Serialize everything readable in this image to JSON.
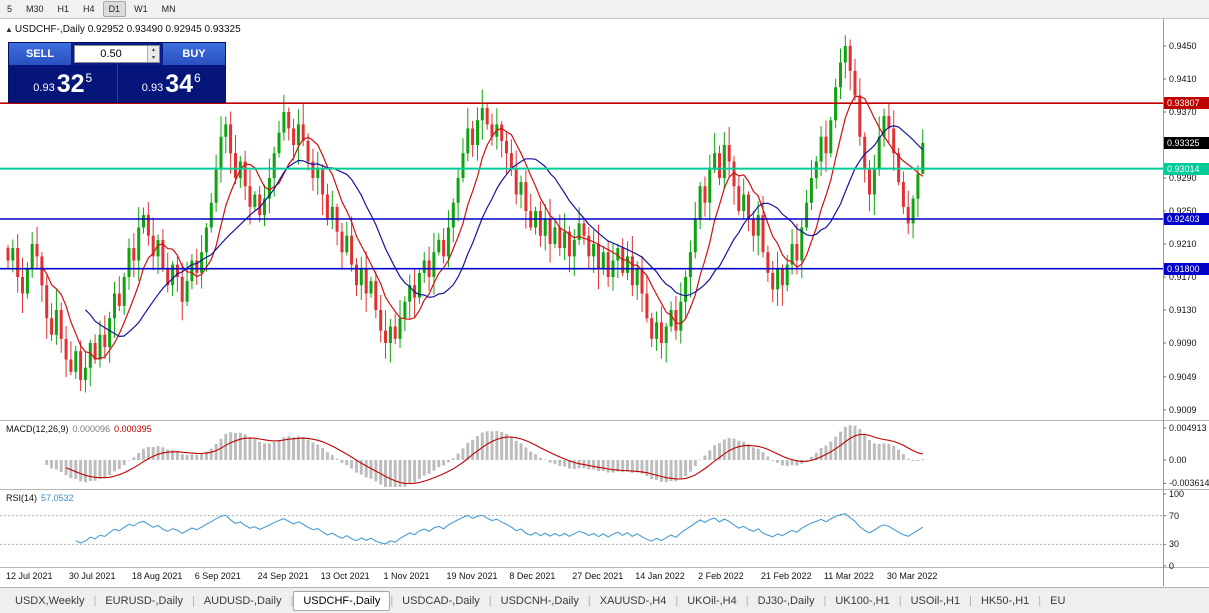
{
  "toolbar": {
    "timeframes": [
      {
        "label": "5",
        "active": false
      },
      {
        "label": "M30",
        "active": false
      },
      {
        "label": "H1",
        "active": false
      },
      {
        "label": "H4",
        "active": false
      },
      {
        "label": "D1",
        "active": true
      },
      {
        "label": "W1",
        "active": false
      },
      {
        "label": "MN",
        "active": false
      }
    ]
  },
  "icons": {
    "panel_toggle": "▲",
    "volume_up": "▴",
    "volume_down": "▾",
    "tab_separator": "|"
  },
  "chart_data": {
    "type": "candlestick",
    "title_symbol": "USDCHF-,Daily",
    "title_ohlc": "0.92952 0.93490 0.92945 0.93325",
    "last_candle": {
      "open": 0.92952,
      "high": 0.9349,
      "low": 0.92945,
      "close": 0.93325
    },
    "y_axis_labels": [
      "0.9450",
      "0.9410",
      "0.9370",
      "0.9330",
      "0.9290",
      "0.9250",
      "0.9210",
      "0.9170",
      "0.9130",
      "0.9090",
      "0.9049",
      "0.9009"
    ],
    "x_labels": [
      "12 Jul 2021",
      "30 Jul 2021",
      "18 Aug 2021",
      "6 Sep 2021",
      "24 Sep 2021",
      "13 Oct 2021",
      "1 Nov 2021",
      "19 Nov 2021",
      "8 Dec 2021",
      "27 Dec 2021",
      "14 Jan 2022",
      "2 Feb 2022",
      "21 Feb 2022",
      "11 Mar 2022",
      "30 Mar 2022"
    ],
    "closes": [
      0.919,
      0.9205,
      0.917,
      0.915,
      0.918,
      0.921,
      0.9195,
      0.916,
      0.912,
      0.91,
      0.913,
      0.9095,
      0.907,
      0.9055,
      0.908,
      0.9045,
      0.906,
      0.909,
      0.907,
      0.91,
      0.9085,
      0.912,
      0.915,
      0.9135,
      0.917,
      0.9205,
      0.919,
      0.923,
      0.9245,
      0.922,
      0.9195,
      0.9215,
      0.918,
      0.916,
      0.9185,
      0.917,
      0.914,
      0.9165,
      0.919,
      0.9175,
      0.92,
      0.923,
      0.926,
      0.93,
      0.934,
      0.9355,
      0.932,
      0.929,
      0.931,
      0.928,
      0.9255,
      0.927,
      0.9245,
      0.9265,
      0.929,
      0.932,
      0.9345,
      0.937,
      0.935,
      0.933,
      0.9355,
      0.9335,
      0.931,
      0.929,
      0.93,
      0.927,
      0.924,
      0.9255,
      0.9225,
      0.92,
      0.922,
      0.9185,
      0.916,
      0.918,
      0.915,
      0.9165,
      0.913,
      0.9105,
      0.909,
      0.911,
      0.9095,
      0.912,
      0.914,
      0.916,
      0.9145,
      0.9175,
      0.919,
      0.917,
      0.92,
      0.9215,
      0.9195,
      0.923,
      0.926,
      0.929,
      0.932,
      0.935,
      0.933,
      0.936,
      0.9375,
      0.9355,
      0.934,
      0.9355,
      0.9335,
      0.932,
      0.93,
      0.927,
      0.9285,
      0.925,
      0.923,
      0.925,
      0.922,
      0.924,
      0.921,
      0.923,
      0.9205,
      0.9225,
      0.9195,
      0.9215,
      0.9235,
      0.922,
      0.9195,
      0.921,
      0.918,
      0.92,
      0.917,
      0.919,
      0.9205,
      0.9175,
      0.9195,
      0.916,
      0.918,
      0.915,
      0.912,
      0.9095,
      0.9115,
      0.909,
      0.911,
      0.913,
      0.9105,
      0.914,
      0.917,
      0.92,
      0.924,
      0.928,
      0.926,
      0.93,
      0.932,
      0.929,
      0.933,
      0.931,
      0.928,
      0.925,
      0.927,
      0.924,
      0.922,
      0.9245,
      0.92,
      0.9175,
      0.9155,
      0.918,
      0.916,
      0.9185,
      0.921,
      0.919,
      0.923,
      0.926,
      0.929,
      0.931,
      0.934,
      0.932,
      0.936,
      0.94,
      0.943,
      0.945,
      0.942,
      0.939,
      0.934,
      0.93,
      0.927,
      0.93,
      0.934,
      0.9365,
      0.935,
      0.932,
      0.9285,
      0.9255,
      0.9235,
      0.9265,
      0.9295,
      0.93325
    ],
    "horizontal_lines": [
      {
        "value": "0.93807",
        "color": "#C00000"
      },
      {
        "value": "0.93014",
        "color": "#00CC99"
      },
      {
        "value": "0.92403",
        "color": "#0000C8"
      },
      {
        "value": "0.91800",
        "color": "#0000C8"
      }
    ],
    "current_price": {
      "value": "0.93325",
      "badge": "#000000"
    },
    "colors": {
      "up": "#0FA30F",
      "down": "#E03232",
      "ma_fast": "#D01010",
      "ma_slow": "#14149B",
      "macd_hist": "#BDBDBD",
      "macd_signal": "#C00000",
      "rsi": "#4A9CD3"
    }
  },
  "macd": {
    "label": "MACD(12,26,9)",
    "value_main": "0.000096",
    "value_signal": "0.000395",
    "axis": [
      "0.004913",
      "0.00",
      "-0.003614"
    ]
  },
  "rsi": {
    "label": "RSI(14)",
    "value": "57.0532",
    "axis": [
      "100",
      "70",
      "30",
      "0"
    ],
    "levels": [
      70,
      30
    ]
  },
  "trade_panel": {
    "sell_label": "SELL",
    "buy_label": "BUY",
    "volume": "0.50",
    "sell_price_small": "0.93",
    "sell_price_big": "32",
    "sell_price_sup": "5",
    "buy_price_small": "0.93",
    "buy_price_big": "34",
    "buy_price_sup": "6"
  },
  "tabs": [
    {
      "label": "USDX,Weekly",
      "active": false
    },
    {
      "label": "EURUSD-,Daily",
      "active": false
    },
    {
      "label": "AUDUSD-,Daily",
      "active": false
    },
    {
      "label": "USDCHF-,Daily",
      "active": true
    },
    {
      "label": "USDCAD-,Daily",
      "active": false
    },
    {
      "label": "USDCNH-,Daily",
      "active": false
    },
    {
      "label": "XAUUSD-,H4",
      "active": false
    },
    {
      "label": "UKOil-,H4",
      "active": false
    },
    {
      "label": "DJ30-,Daily",
      "active": false
    },
    {
      "label": "UK100-,H1",
      "active": false
    },
    {
      "label": "USOil-,H1",
      "active": false
    },
    {
      "label": "HK50-,H1",
      "active": false
    },
    {
      "label": "EU",
      "active": false
    }
  ]
}
